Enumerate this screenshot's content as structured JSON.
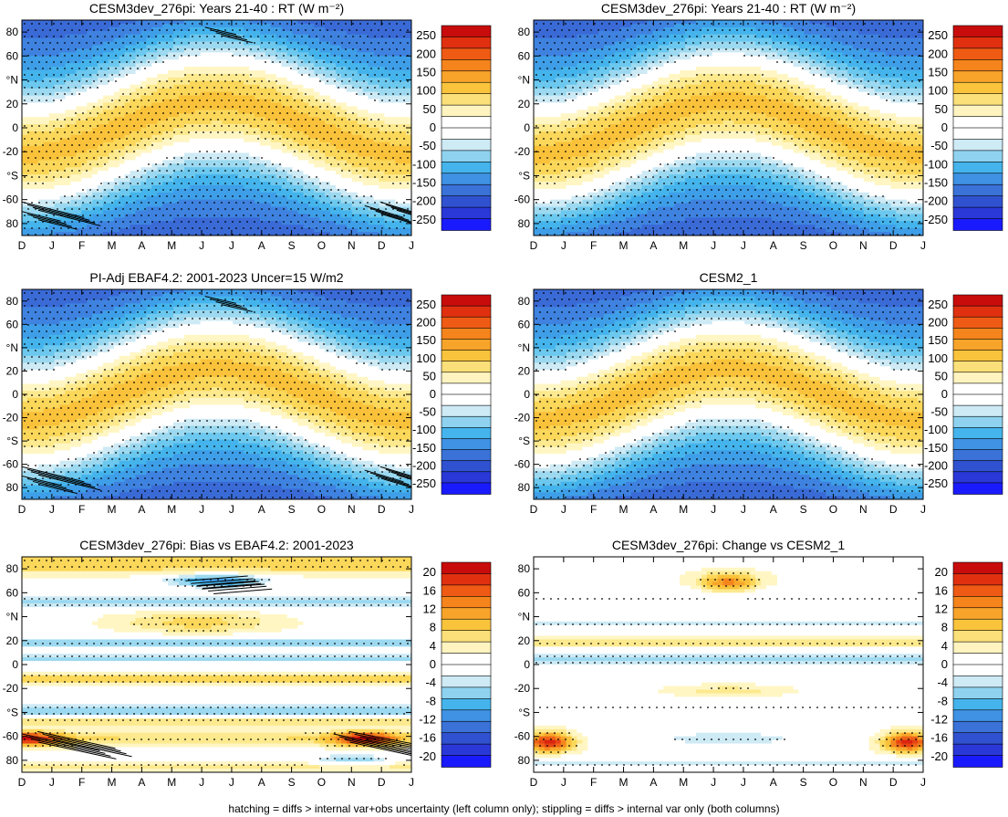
{
  "figure": {
    "caption": "hatching = diffs > internal var+obs uncertainty (left column only); stippling = diffs > internal var only (both columns)"
  },
  "chart_data": [
    {
      "type": "heatmap",
      "panel": "a",
      "title": "CESM3dev_276pi: Years 21-40 : RT (W m⁻²)",
      "x": [
        "D",
        "J",
        "F",
        "M",
        "A",
        "M",
        "J",
        "J",
        "A",
        "S",
        "O",
        "N",
        "D",
        "J"
      ],
      "y_ticks": [
        "80",
        "60",
        "°N",
        "20",
        "0",
        "-20",
        "°S",
        "-60",
        "80"
      ],
      "colorbar": [
        "250",
        "200",
        "150",
        "100",
        "50",
        "0",
        "-50",
        "-100",
        "-150",
        "-200",
        "-250"
      ],
      "field": "rt",
      "stipple": true,
      "hatch": true
    },
    {
      "type": "heatmap",
      "panel": "b",
      "title": "CESM3dev_276pi: Years 21-40 : RT (W m⁻²)",
      "x": [
        "D",
        "J",
        "F",
        "M",
        "A",
        "M",
        "J",
        "J",
        "A",
        "S",
        "O",
        "N",
        "D",
        "J"
      ],
      "y_ticks": [
        "80",
        "60",
        "°N",
        "20",
        "0",
        "-20",
        "°S",
        "-60",
        "80"
      ],
      "colorbar": [
        "250",
        "200",
        "150",
        "100",
        "50",
        "0",
        "-50",
        "-100",
        "-150",
        "-200",
        "-250"
      ],
      "field": "rt",
      "stipple": true,
      "hatch": false
    },
    {
      "type": "heatmap",
      "panel": "c",
      "title": "PI-Adj EBAF4.2: 2001-2023 Uncer=15 W/m2",
      "x": [
        "D",
        "J",
        "F",
        "M",
        "A",
        "M",
        "J",
        "J",
        "A",
        "S",
        "O",
        "N",
        "D",
        "J"
      ],
      "y_ticks": [
        "80",
        "60",
        "°N",
        "20",
        "0",
        "-20",
        "°S",
        "-60",
        "80"
      ],
      "colorbar": [
        "250",
        "200",
        "150",
        "100",
        "50",
        "0",
        "-50",
        "-100",
        "-150",
        "-200",
        "-250"
      ],
      "field": "rt",
      "stipple": true,
      "hatch": true
    },
    {
      "type": "heatmap",
      "panel": "d",
      "title": "CESM2_1",
      "x": [
        "D",
        "J",
        "F",
        "M",
        "A",
        "M",
        "J",
        "J",
        "A",
        "S",
        "O",
        "N",
        "D",
        "J"
      ],
      "y_ticks": [
        "80",
        "60",
        "°N",
        "20",
        "0",
        "-20",
        "°S",
        "-60",
        "80"
      ],
      "colorbar": [
        "250",
        "200",
        "150",
        "100",
        "50",
        "0",
        "-50",
        "-100",
        "-150",
        "-200",
        "-250"
      ],
      "field": "rt",
      "stipple": true,
      "hatch": false
    },
    {
      "type": "heatmap",
      "panel": "e",
      "title": "CESM3dev_276pi: Bias vs EBAF4.2: 2001-2023",
      "x": [
        "D",
        "J",
        "F",
        "M",
        "A",
        "M",
        "J",
        "J",
        "A",
        "S",
        "O",
        "N",
        "D",
        "J"
      ],
      "y_ticks": [
        "80",
        "60",
        "°N",
        "20",
        "0",
        "-20",
        "°S",
        "-60",
        "80"
      ],
      "colorbar": [
        "20",
        "16",
        "12",
        "8",
        "4",
        "0",
        "-4",
        "-8",
        "-12",
        "-16",
        "-20"
      ],
      "field": "bias",
      "stipple": true,
      "hatch": true
    },
    {
      "type": "heatmap",
      "panel": "f",
      "title": "CESM3dev_276pi: Change vs CESM2_1",
      "x": [
        "D",
        "J",
        "F",
        "M",
        "A",
        "M",
        "J",
        "J",
        "A",
        "S",
        "O",
        "N",
        "D",
        "J"
      ],
      "y_ticks": [
        "80",
        "60",
        "°N",
        "20",
        "0",
        "-20",
        "°S",
        "-60",
        "80"
      ],
      "colorbar": [
        "20",
        "16",
        "12",
        "8",
        "4",
        "0",
        "-4",
        "-8",
        "-12",
        "-16",
        "-20"
      ],
      "field": "change",
      "stipple": true,
      "hatch": false
    }
  ],
  "palette": [
    "#1a1aff",
    "#2e4fd6",
    "#3a6ad6",
    "#3f82e0",
    "#3f9ee8",
    "#45b4ec",
    "#6cc8ee",
    "#9cd9f0",
    "#cdeaf5",
    "#ffffff",
    "#ffffff",
    "#fff6c4",
    "#fde98e",
    "#fbd75a",
    "#f9c23a",
    "#f7a62a",
    "#f5861e",
    "#ef6418",
    "#e64414",
    "#da2410",
    "#c80c0c"
  ],
  "colorbar_palette": [
    "#c80c0c",
    "#e03010",
    "#ef5a14",
    "#f5841c",
    "#f8a42a",
    "#f9c43c",
    "#fbe07a",
    "#fff4c0",
    "#ffffff",
    "#ffffff",
    "#cdeaf5",
    "#8fd2f0",
    "#45b4ec",
    "#3f92e4",
    "#3a72d8",
    "#3052d0",
    "#2a38d8",
    "#1a1aff"
  ]
}
